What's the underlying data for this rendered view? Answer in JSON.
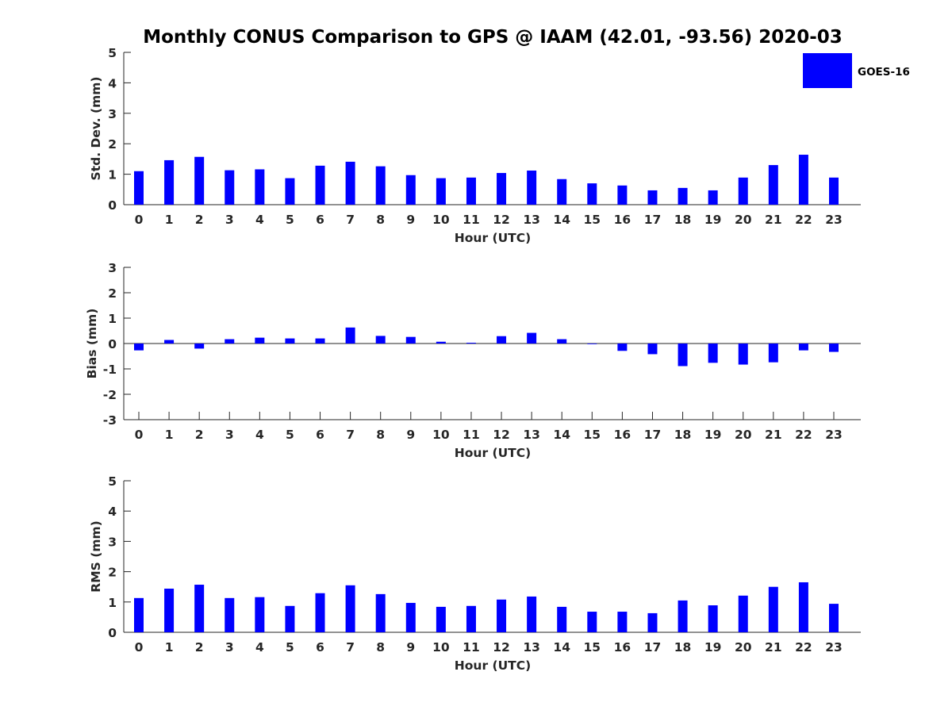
{
  "title": "Monthly CONUS Comparison to GPS @ IAAM (42.01, -93.56) 2020-03",
  "legend": {
    "label": "GOES-16",
    "color": "#0000ff",
    "placement": "top-right"
  },
  "chart_data": [
    {
      "type": "bar",
      "name": "std-dev",
      "title": "",
      "xlabel": "Hour (UTC)",
      "ylabel": "Std. Dev. (mm)",
      "ylim": [
        0,
        5
      ],
      "yticks": [
        "0",
        "1",
        "2",
        "3",
        "4",
        "5"
      ],
      "categories": [
        "0",
        "1",
        "2",
        "3",
        "4",
        "5",
        "6",
        "7",
        "8",
        "9",
        "10",
        "11",
        "12",
        "13",
        "14",
        "15",
        "16",
        "17",
        "18",
        "19",
        "20",
        "21",
        "22",
        "23"
      ],
      "series": [
        {
          "name": "GOES-16",
          "color": "#0000ff",
          "values": [
            1.1,
            1.46,
            1.57,
            1.13,
            1.16,
            0.87,
            1.28,
            1.41,
            1.26,
            0.97,
            0.87,
            0.89,
            1.04,
            1.12,
            0.84,
            0.7,
            0.63,
            0.47,
            0.55,
            0.47,
            0.89,
            1.3,
            1.64,
            0.89
          ]
        }
      ],
      "grid": false
    },
    {
      "type": "bar",
      "name": "bias",
      "title": "",
      "xlabel": "Hour (UTC)",
      "ylabel": "Bias (mm)",
      "ylim": [
        -3,
        3
      ],
      "yticks": [
        "-3",
        "-2",
        "-1",
        "0",
        "1",
        "2",
        "3"
      ],
      "categories": [
        "0",
        "1",
        "2",
        "3",
        "4",
        "5",
        "6",
        "7",
        "8",
        "9",
        "10",
        "11",
        "12",
        "13",
        "14",
        "15",
        "16",
        "17",
        "18",
        "19",
        "20",
        "21",
        "22",
        "23"
      ],
      "series": [
        {
          "name": "GOES-16",
          "color": "#0000ff",
          "values": [
            -0.27,
            0.14,
            -0.2,
            0.17,
            0.23,
            0.2,
            0.2,
            0.63,
            0.3,
            0.26,
            0.07,
            0.03,
            0.29,
            0.42,
            0.17,
            -0.01,
            -0.29,
            -0.42,
            -0.89,
            -0.76,
            -0.83,
            -0.74,
            -0.27,
            -0.33
          ]
        }
      ],
      "grid": false
    },
    {
      "type": "bar",
      "name": "rms",
      "title": "",
      "xlabel": "Hour (UTC)",
      "ylabel": "RMS (mm)",
      "ylim": [
        0,
        5
      ],
      "yticks": [
        "0",
        "1",
        "2",
        "3",
        "4",
        "5"
      ],
      "categories": [
        "0",
        "1",
        "2",
        "3",
        "4",
        "5",
        "6",
        "7",
        "8",
        "9",
        "10",
        "11",
        "12",
        "13",
        "14",
        "15",
        "16",
        "17",
        "18",
        "19",
        "20",
        "21",
        "22",
        "23"
      ],
      "series": [
        {
          "name": "GOES-16",
          "color": "#0000ff",
          "values": [
            1.13,
            1.44,
            1.57,
            1.13,
            1.16,
            0.87,
            1.29,
            1.55,
            1.26,
            0.97,
            0.84,
            0.87,
            1.08,
            1.18,
            0.84,
            0.68,
            0.68,
            0.63,
            1.05,
            0.89,
            1.21,
            1.5,
            1.65,
            0.94
          ]
        }
      ],
      "grid": false
    }
  ]
}
